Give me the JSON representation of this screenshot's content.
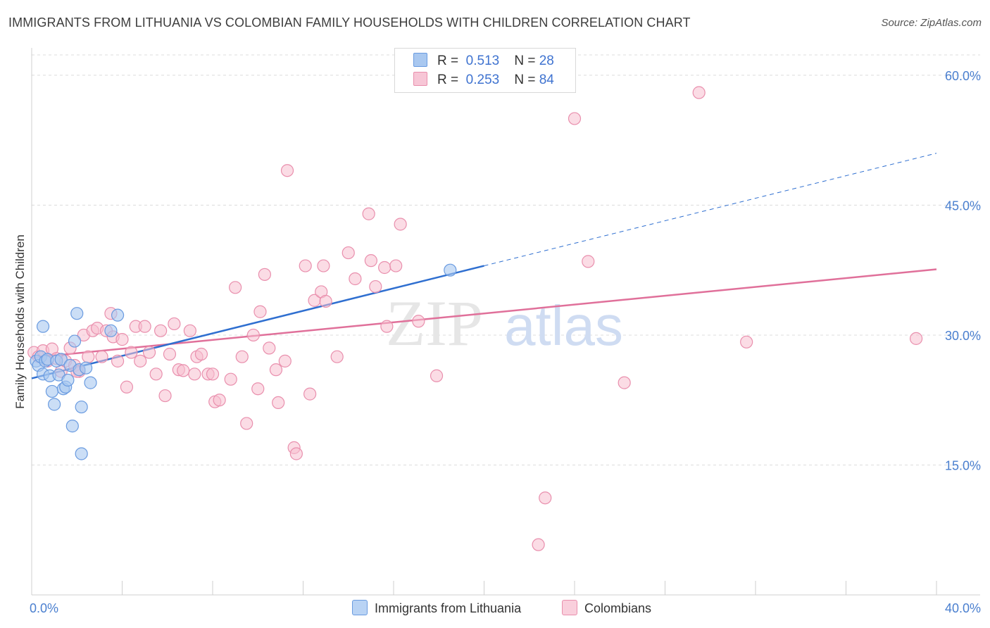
{
  "title": "IMMIGRANTS FROM LITHUANIA VS COLOMBIAN FAMILY HOUSEHOLDS WITH CHILDREN CORRELATION CHART",
  "source": "Source: ZipAtlas.com",
  "watermark": {
    "zip": "ZIP",
    "atlas": "atlas"
  },
  "colors": {
    "blue_fill": "#a9c8f0",
    "blue_stroke": "#6a9be0",
    "blue_line": "#2f6fd0",
    "pink_fill": "#f7bfd0",
    "pink_stroke": "#e98fad",
    "pink_line": "#e0709a",
    "grid": "#dcdcdc",
    "tick_text": "#4a7fcf"
  },
  "legend": {
    "rows": [
      {
        "r_label": "R =",
        "r_value": "0.513",
        "n_label": "N =",
        "n_value": "28"
      },
      {
        "r_label": "R =",
        "r_value": "0.253",
        "n_label": "N =",
        "n_value": "84"
      }
    ]
  },
  "bottom_legend": [
    "Immigrants from Lithuania",
    "Colombians"
  ],
  "chart_data": {
    "type": "scatter",
    "title": "IMMIGRANTS FROM LITHUANIA VS COLOMBIAN FAMILY HOUSEHOLDS WITH CHILDREN CORRELATION CHART",
    "xlabel": "",
    "ylabel": "Family Households with Children",
    "xlim": [
      0,
      40
    ],
    "ylim": [
      0,
      63
    ],
    "x_ticks": [
      0,
      40
    ],
    "x_tick_labels": [
      "0.0%",
      "40.0%"
    ],
    "y_ticks": [
      15,
      30,
      45,
      60
    ],
    "y_tick_labels": [
      "15.0%",
      "30.0%",
      "45.0%",
      "60.0%"
    ],
    "grid": true,
    "legend_position": "top-center",
    "series": [
      {
        "name": "Immigrants from Lithuania",
        "color": "#6a9be0",
        "r": 0.513,
        "n": 28,
        "trend": {
          "x0": 0,
          "y0": 25.0,
          "x1": 20,
          "y1": 38.0,
          "dashed_to_x": 40,
          "dashed_to_y": 51.0
        },
        "points": [
          [
            0.2,
            27.0
          ],
          [
            0.3,
            26.5
          ],
          [
            0.4,
            27.5
          ],
          [
            0.5,
            31.0
          ],
          [
            0.5,
            25.5
          ],
          [
            0.6,
            27.0
          ],
          [
            0.7,
            27.2
          ],
          [
            0.8,
            25.3
          ],
          [
            0.9,
            23.5
          ],
          [
            1.0,
            22.0
          ],
          [
            1.1,
            27.0
          ],
          [
            1.2,
            25.4
          ],
          [
            1.3,
            27.2
          ],
          [
            1.4,
            23.8
          ],
          [
            1.5,
            24.0
          ],
          [
            1.6,
            24.8
          ],
          [
            1.7,
            26.5
          ],
          [
            1.8,
            19.5
          ],
          [
            1.9,
            29.3
          ],
          [
            2.0,
            32.5
          ],
          [
            2.1,
            26.0
          ],
          [
            2.2,
            21.7
          ],
          [
            2.2,
            16.3
          ],
          [
            2.4,
            26.2
          ],
          [
            2.6,
            24.5
          ],
          [
            3.5,
            30.5
          ],
          [
            3.8,
            32.3
          ],
          [
            18.5,
            37.5
          ]
        ]
      },
      {
        "name": "Colombians",
        "color": "#e98fad",
        "r": 0.253,
        "n": 84,
        "trend": {
          "x0": 0,
          "y0": 27.4,
          "x1": 40,
          "y1": 37.6
        },
        "points": [
          [
            0.1,
            28.0
          ],
          [
            0.3,
            27.5
          ],
          [
            0.5,
            28.2
          ],
          [
            0.7,
            27.0
          ],
          [
            0.9,
            28.4
          ],
          [
            1.1,
            27.3
          ],
          [
            1.3,
            25.8
          ],
          [
            1.5,
            27.0
          ],
          [
            1.7,
            28.5
          ],
          [
            1.9,
            26.5
          ],
          [
            2.1,
            25.8
          ],
          [
            2.3,
            30.0
          ],
          [
            2.5,
            27.5
          ],
          [
            2.7,
            30.5
          ],
          [
            2.9,
            30.8
          ],
          [
            3.1,
            27.5
          ],
          [
            3.3,
            30.5
          ],
          [
            3.5,
            32.5
          ],
          [
            3.6,
            29.8
          ],
          [
            3.8,
            27.0
          ],
          [
            4.0,
            29.5
          ],
          [
            4.2,
            24.0
          ],
          [
            4.4,
            28.0
          ],
          [
            4.6,
            31.0
          ],
          [
            4.8,
            27.0
          ],
          [
            5.0,
            31.0
          ],
          [
            5.2,
            28.0
          ],
          [
            5.5,
            25.5
          ],
          [
            5.7,
            30.5
          ],
          [
            5.9,
            23.0
          ],
          [
            6.1,
            27.8
          ],
          [
            6.3,
            31.3
          ],
          [
            6.5,
            26.0
          ],
          [
            6.7,
            25.9
          ],
          [
            7.0,
            30.5
          ],
          [
            7.3,
            27.5
          ],
          [
            7.5,
            27.8
          ],
          [
            7.8,
            25.5
          ],
          [
            8.1,
            22.3
          ],
          [
            8.3,
            22.5
          ],
          [
            8.8,
            24.9
          ],
          [
            9.0,
            35.5
          ],
          [
            9.3,
            27.5
          ],
          [
            9.5,
            19.8
          ],
          [
            9.8,
            30.0
          ],
          [
            10.0,
            23.8
          ],
          [
            10.1,
            32.7
          ],
          [
            10.3,
            37.0
          ],
          [
            10.5,
            28.5
          ],
          [
            10.8,
            26.0
          ],
          [
            10.9,
            22.2
          ],
          [
            11.2,
            27.0
          ],
          [
            11.3,
            49.0
          ],
          [
            11.6,
            17.0
          ],
          [
            11.7,
            16.3
          ],
          [
            12.1,
            38.0
          ],
          [
            12.5,
            34.0
          ],
          [
            12.8,
            35.0
          ],
          [
            12.9,
            38.0
          ],
          [
            13.0,
            33.9
          ],
          [
            14.0,
            39.5
          ],
          [
            14.3,
            36.5
          ],
          [
            14.9,
            44.0
          ],
          [
            15.0,
            38.6
          ],
          [
            15.2,
            35.6
          ],
          [
            15.6,
            37.8
          ],
          [
            15.7,
            31.0
          ],
          [
            16.1,
            38.0
          ],
          [
            16.3,
            42.8
          ],
          [
            17.1,
            31.6
          ],
          [
            17.9,
            25.3
          ],
          [
            22.4,
            5.8
          ],
          [
            22.7,
            11.2
          ],
          [
            24.0,
            55.0
          ],
          [
            24.6,
            38.5
          ],
          [
            26.2,
            24.5
          ],
          [
            29.5,
            58.0
          ],
          [
            31.6,
            29.2
          ],
          [
            39.1,
            29.6
          ],
          [
            7.2,
            25.5
          ],
          [
            2.0,
            25.8
          ],
          [
            12.3,
            23.2
          ],
          [
            8.0,
            25.5
          ],
          [
            13.5,
            27.5
          ]
        ]
      }
    ]
  }
}
